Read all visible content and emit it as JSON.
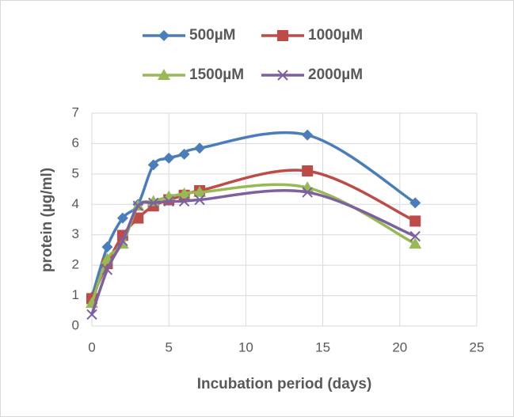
{
  "chart_data": {
    "type": "line",
    "x_label": "Incubation period (days)",
    "y_label": "protein (µg/ml)",
    "x": [
      0,
      1,
      2,
      3,
      4,
      5,
      6,
      7,
      14,
      21
    ],
    "series": [
      {
        "name": "500µM",
        "color": "#4a7ebb",
        "marker": "diamond",
        "values": [
          0.95,
          2.6,
          3.55,
          4.0,
          5.3,
          5.52,
          5.65,
          5.85,
          6.28,
          4.05
        ]
      },
      {
        "name": "1000µM",
        "color": "#be4b48",
        "marker": "square",
        "values": [
          0.9,
          2.05,
          2.98,
          3.55,
          3.95,
          4.15,
          4.3,
          4.45,
          5.1,
          3.45
        ]
      },
      {
        "name": "1500µM",
        "color": "#98b954",
        "marker": "triangle",
        "values": [
          0.75,
          2.2,
          2.7,
          3.95,
          4.1,
          4.25,
          4.35,
          4.4,
          4.55,
          2.7
        ]
      },
      {
        "name": "2000µM",
        "color": "#7d60a0",
        "marker": "x",
        "values": [
          0.38,
          1.85,
          2.8,
          3.95,
          4.05,
          4.1,
          4.1,
          4.15,
          4.4,
          2.95
        ]
      }
    ],
    "xlim": [
      0,
      25
    ],
    "xticks": [
      0,
      5,
      10,
      15,
      20,
      25
    ],
    "ylim": [
      0,
      7
    ],
    "yticks": [
      0,
      1,
      2,
      3,
      4,
      5,
      6,
      7
    ],
    "grid": true,
    "smooth": true,
    "legend": "top"
  }
}
